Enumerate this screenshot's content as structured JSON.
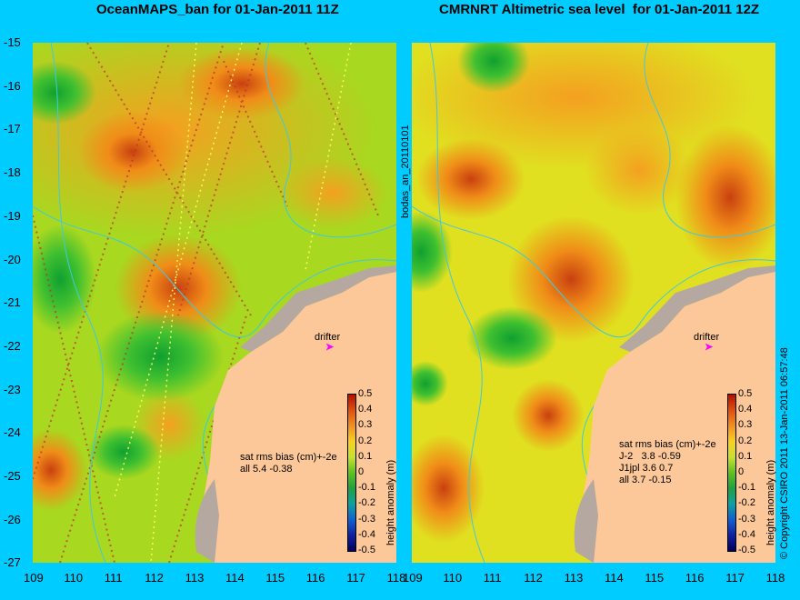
{
  "left_panel": {
    "title": "OceanMAPS_ban for 01-Jan-2011 11Z",
    "stats_header": "sat rms bias (cm)+-2e",
    "stats_rows": [
      "all 5.4 -0.38"
    ],
    "drifter_label": "drifter"
  },
  "right_panel": {
    "title": "CMRNRT Altimetric sea level  for 01-Jan-2011 12Z",
    "stats_header": "sat rms bias (cm)+-2e",
    "stats_rows": [
      "J-2   3.8 -0.59",
      "J1jpl 3.6 0.7",
      "all 3.7 -0.15"
    ],
    "drifter_label": "drifter"
  },
  "side_label": "bodas_an_20110101",
  "colorbar": {
    "label": "height anomaly (m)",
    "ticks": [
      "0.5",
      "0.4",
      "0.3",
      "0.2",
      "0.1",
      "0",
      "-0.1",
      "-0.2",
      "-0.3",
      "-0.4",
      "-0.5"
    ]
  },
  "copyright": "© Copyright CSIRO 2011   13-Jan-2011 06:57:48",
  "axes": {
    "lat_ticks": [
      "-15",
      "-16",
      "-17",
      "-18",
      "-19",
      "-20",
      "-21",
      "-22",
      "-23",
      "-24",
      "-25",
      "-26",
      "-27"
    ],
    "lon_ticks": [
      "109",
      "110",
      "111",
      "112",
      "113",
      "114",
      "115",
      "116",
      "117",
      "118"
    ]
  },
  "colors": {
    "background": "#00ccff",
    "land": "#fcc89a",
    "shelf": "#b4a8a0",
    "contour": "#40c8e0",
    "drifter_arrow": "#ff00ff"
  }
}
